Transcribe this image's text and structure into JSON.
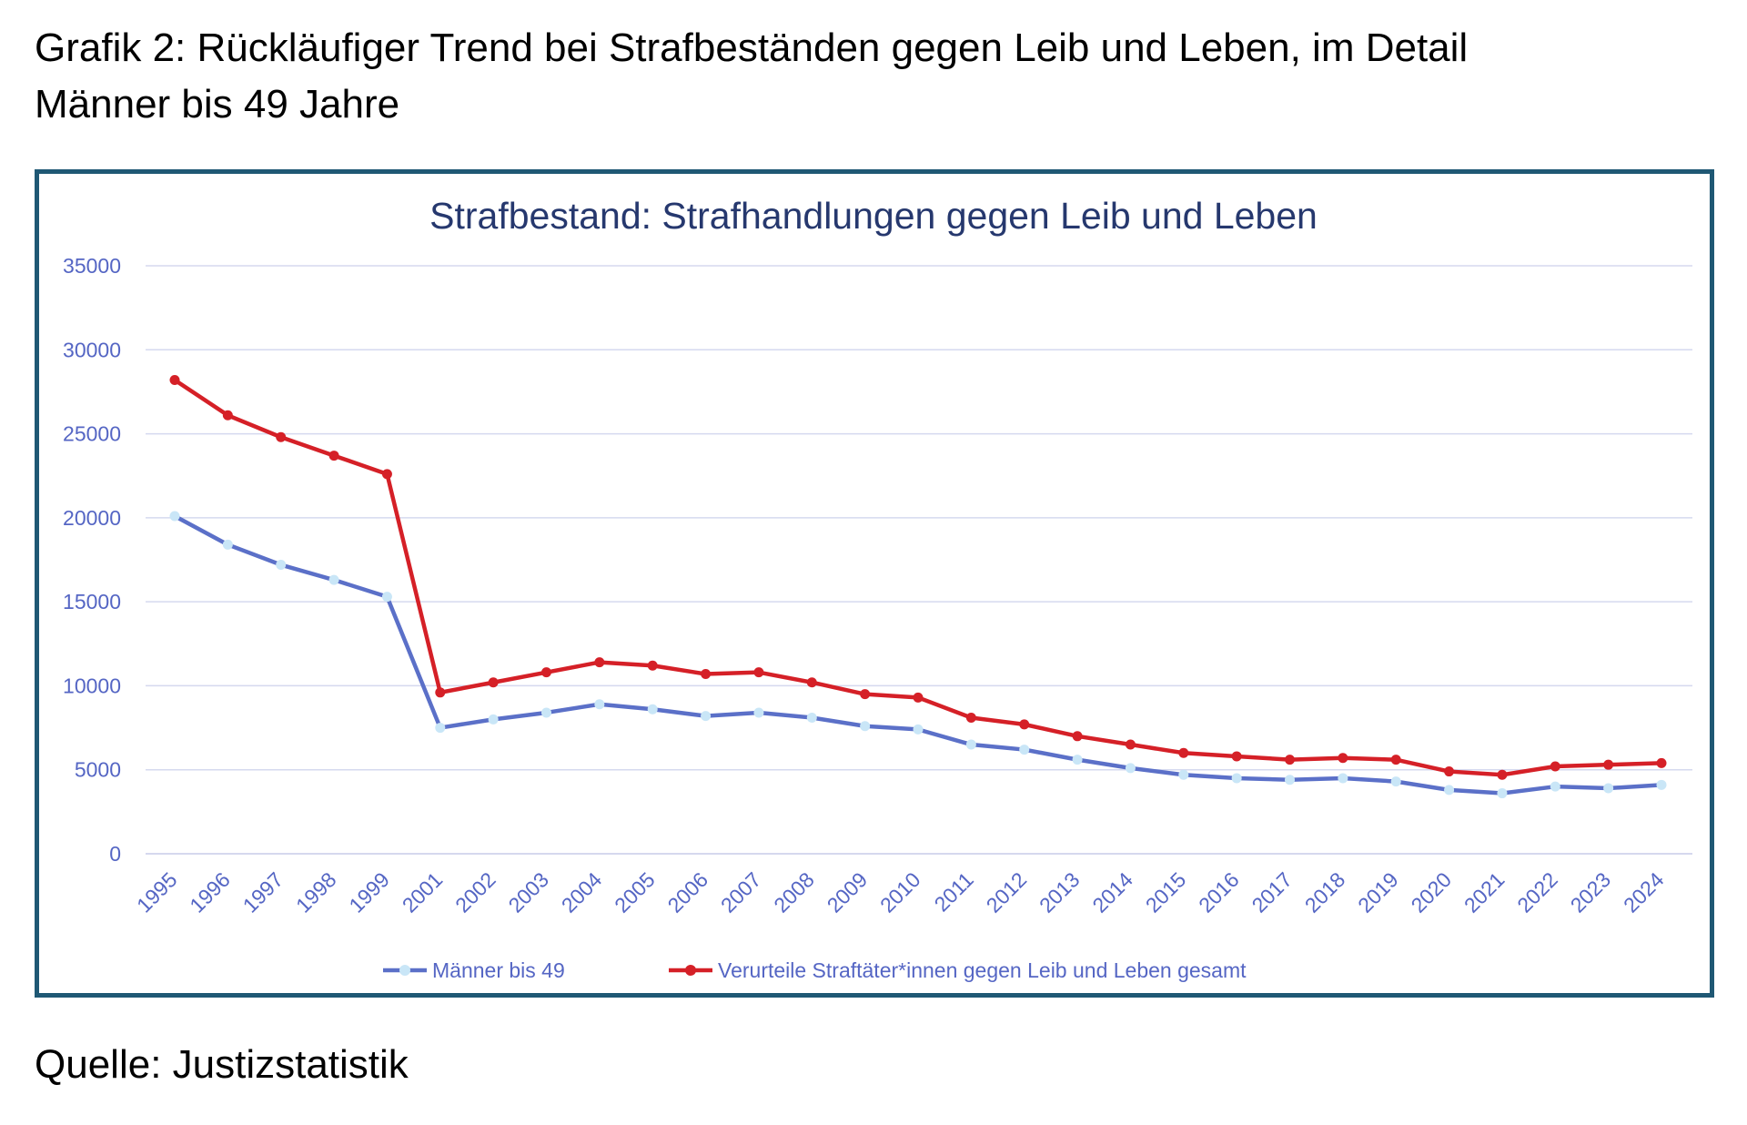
{
  "heading": {
    "line1": "Grafik 2: Rückläufiger Trend bei Strafbeständen gegen Leib und Leben, im Detail",
    "line2": "Männer bis 49 Jahre"
  },
  "source": "Quelle: Justizstatistik",
  "colors": {
    "frame": "#1f5874",
    "title": "#26386e",
    "axis_text": "#5566c4",
    "grid": "#d5d9ef",
    "series_men_line": "#5b70c8",
    "series_men_marker": "#c9e6f7",
    "series_total": "#d52027"
  },
  "chart_data": {
    "type": "line",
    "title": "Strafbestand: Strafhandlungen gegen Leib und Leben",
    "xlabel": "",
    "ylabel": "",
    "ylim": [
      0,
      35000
    ],
    "yticks": [
      0,
      5000,
      10000,
      15000,
      20000,
      25000,
      30000,
      35000
    ],
    "grid": true,
    "legend_position": "bottom",
    "categories": [
      "1995",
      "1996",
      "1997",
      "1998",
      "1999",
      "2001",
      "2002",
      "2003",
      "2004",
      "2005",
      "2006",
      "2007",
      "2008",
      "2009",
      "2010",
      "2011",
      "2012",
      "2013",
      "2014",
      "2015",
      "2016",
      "2017",
      "2018",
      "2019",
      "2020",
      "2021",
      "2022",
      "2023",
      "2024"
    ],
    "series": [
      {
        "name": "Männer bis 49",
        "color": "#5b70c8",
        "marker_color": "#c9e6f7",
        "values": [
          20100,
          18400,
          17200,
          16300,
          15300,
          7500,
          8000,
          8400,
          8900,
          8600,
          8200,
          8400,
          8100,
          7600,
          7400,
          6500,
          6200,
          5600,
          5100,
          4700,
          4500,
          4400,
          4500,
          4300,
          3800,
          3600,
          4000,
          3900,
          4100
        ]
      },
      {
        "name": "Verurteile Straftäter*innen gegen Leib und Leben gesamt",
        "color": "#d52027",
        "marker_color": "#d52027",
        "values": [
          28200,
          26100,
          24800,
          23700,
          22600,
          9600,
          10200,
          10800,
          11400,
          11200,
          10700,
          10800,
          10200,
          9500,
          9300,
          8100,
          7700,
          7000,
          6500,
          6000,
          5800,
          5600,
          5700,
          5600,
          4900,
          4700,
          5200,
          5300,
          5400
        ]
      }
    ]
  }
}
